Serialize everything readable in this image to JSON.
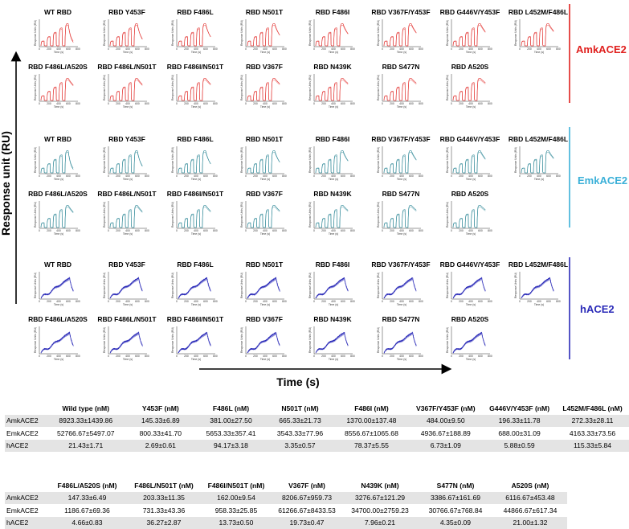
{
  "figure": {
    "y_axis_label": "Response unit (RU)",
    "x_axis_label": "Time (s)",
    "panel_ylabel": "Response Units (RU)",
    "panel_xlabel": "Time (s)",
    "panel_xticks": [
      "0",
      "200",
      "400",
      "600",
      "800"
    ]
  },
  "chart_data": [
    {
      "type": "line",
      "group": "AmkACE2",
      "color": "#e0201e",
      "style": "multicycle",
      "panels": [
        "WT RBD",
        "RBD Y453F",
        "RBD F486L",
        "RBD N501T",
        "RBD F486I",
        "RBD V367F/Y453F",
        "RBD G446V/Y453F",
        "RBD L452M/F486L",
        "RBD F486L/A520S",
        "RBD F486L/N501T",
        "RBD F486I/N501T",
        "RBD V367F",
        "RBD N439K",
        "RBD S477N",
        "RBD A520S"
      ],
      "xlim": [
        0,
        800
      ]
    },
    {
      "type": "line",
      "group": "EmkACE2",
      "color": "#1f7f8f",
      "style": "multicycle",
      "panels": [
        "WT RBD",
        "RBD Y453F",
        "RBD F486L",
        "RBD N501T",
        "RBD F486I",
        "RBD V367F/Y453F",
        "RBD G446V/Y453F",
        "RBD L452M/F486L",
        "RBD F486L/A520S",
        "RBD F486L/N501T",
        "RBD F486I/N501T",
        "RBD V367F",
        "RBD N439K",
        "RBD S477N",
        "RBD A520S"
      ],
      "xlim": [
        0,
        800
      ]
    },
    {
      "type": "line",
      "group": "hACE2",
      "color": "#2a2ab8",
      "style": "single-cycle",
      "panels": [
        "WT RBD",
        "RBD Y453F",
        "RBD F486L",
        "RBD N501T",
        "RBD F486I",
        "RBD V367F/Y453F",
        "RBD G446V/Y453F",
        "RBD L452M/F486L",
        "RBD F486L/A520S",
        "RBD F486L/N501T",
        "RBD F486I/N501T",
        "RBD V367F",
        "RBD N439K",
        "RBD S477N",
        "RBD A520S"
      ],
      "xlim": [
        0,
        800
      ]
    },
    {
      "type": "table",
      "title": "",
      "columns": [
        "",
        "Wild type (nM)",
        "Y453F (nM)",
        "F486L (nM)",
        "N501T (nM)",
        "F486I (nM)",
        "V367F/Y453F (nM)",
        "G446V/Y453F (nM)",
        "L452M/F486L (nM)"
      ],
      "rows": [
        [
          "AmkACE2",
          "8923.33±1439.86",
          "145.33±6.89",
          "381.00±27.50",
          "665.33±21.73",
          "1370.00±137.48",
          "484.00±9.50",
          "196.33±11.78",
          "272.33±28.11"
        ],
        [
          "EmkACE2",
          "52766.67±5497.07",
          "800.33±41.70",
          "5653.33±357.41",
          "3543.33±77.96",
          "8556.67±1065.68",
          "4936.67±188.89",
          "688.00±31.09",
          "4163.33±73.56"
        ],
        [
          "hACE2",
          "21.43±1.71",
          "2.69±0.61",
          "94.17±3.18",
          "3.35±0.57",
          "78.37±5.55",
          "6.73±1.09",
          "5.88±0.59",
          "115.33±5.84"
        ]
      ]
    },
    {
      "type": "table",
      "title": "",
      "columns": [
        "",
        "F486L/A520S (nM)",
        "F486L/N501T (nM)",
        "F486I/N501T (nM)",
        "V367F (nM)",
        "N439K (nM)",
        "S477N (nM)",
        "A520S (nM)"
      ],
      "rows": [
        [
          "AmkACE2",
          "147.33±6.49",
          "203.33±11.35",
          "162.00±9.54",
          "8206.67±959.73",
          "3276.67±121.29",
          "3386.67±161.69",
          "6116.67±453.48"
        ],
        [
          "EmkACE2",
          "1186.67±69.36",
          "731.33±43.36",
          "958.33±25.85",
          "61266.67±8433.53",
          "34700.00±2759.23",
          "30766.67±768.84",
          "44866.67±617.34"
        ],
        [
          "hACE2",
          "4.66±0.83",
          "36.27±2.87",
          "13.73±0.50",
          "19.73±0.47",
          "7.96±0.21",
          "4.35±0.09",
          "21.00±1.32"
        ]
      ]
    }
  ]
}
